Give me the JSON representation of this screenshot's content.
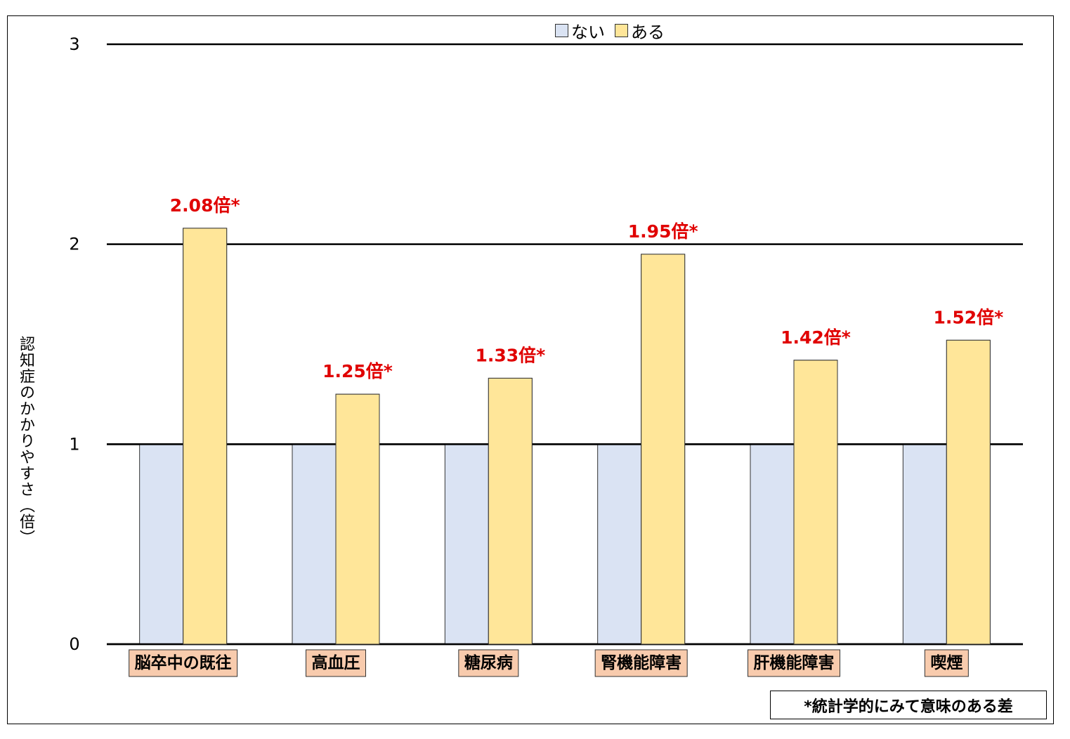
{
  "chart_data": {
    "type": "bar",
    "ylabel": "認知症のかかりやすさ（倍）",
    "ylim": [
      0,
      3
    ],
    "yticks": [
      0,
      1,
      2,
      3
    ],
    "grid": true,
    "legend_position": "top-center",
    "categories": [
      "脳卒中の既往",
      "高血圧",
      "糖尿病",
      "腎機能障害",
      "肝機能障害",
      "喫煙"
    ],
    "series": [
      {
        "name": "ない",
        "color": "#dae3f3",
        "values": [
          1,
          1,
          1,
          1,
          1,
          1
        ]
      },
      {
        "name": "ある",
        "color": "#ffe699",
        "values": [
          2.08,
          1.25,
          1.33,
          1.95,
          1.42,
          1.52
        ]
      }
    ],
    "annotations": [
      "2.08倍*",
      "1.25倍*",
      "1.33倍*",
      "1.95倍*",
      "1.42倍*",
      "1.52倍*"
    ],
    "annotation_color": "#e00000",
    "category_label_bg": "#f8cbad",
    "footnote": "*統計学的にみて意味のある差"
  }
}
